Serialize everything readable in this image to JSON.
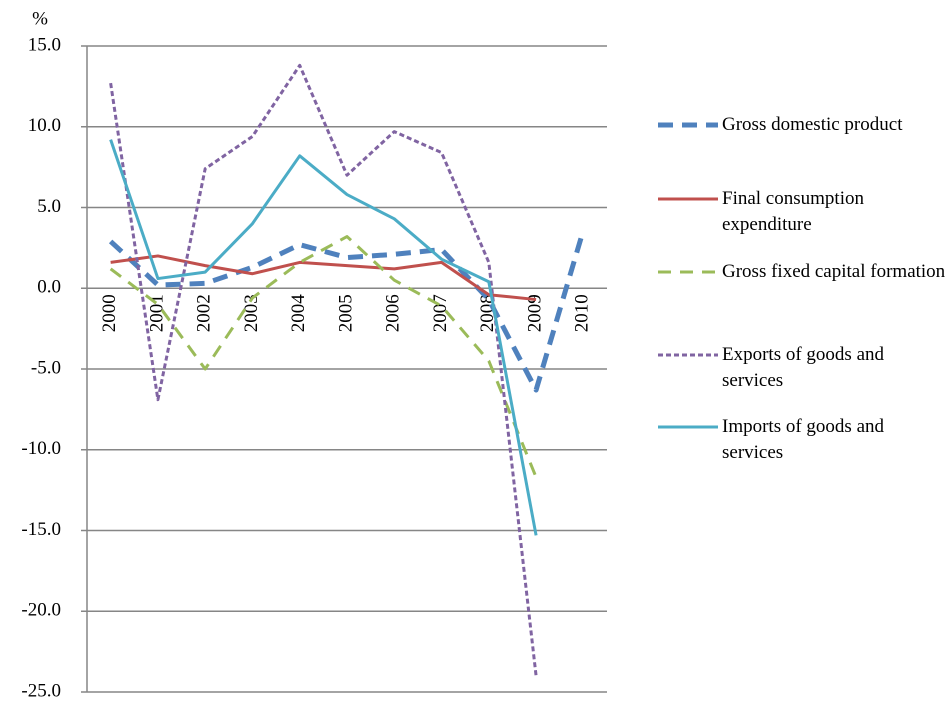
{
  "chart_data": {
    "type": "line",
    "y_label": "%",
    "categories": [
      "2000",
      "2001",
      "2002",
      "2003",
      "2004",
      "2005",
      "2006",
      "2007",
      "2008",
      "2009",
      "2010"
    ],
    "series": [
      {
        "name": "Gross domestic product",
        "color": "#4f81bd",
        "values": [
          2.9,
          0.2,
          0.3,
          1.3,
          2.7,
          1.9,
          2.1,
          2.4,
          -0.7,
          -6.3,
          3.6
        ]
      },
      {
        "name": "Final consumption expenditure",
        "color": "#c0504d",
        "values": [
          1.6,
          2.0,
          1.4,
          0.9,
          1.6,
          1.4,
          1.2,
          1.6,
          -0.4,
          -0.7,
          null
        ]
      },
      {
        "name": "Gross fixed capital formation",
        "color": "#9bbb59",
        "values": [
          1.2,
          -1.0,
          -5.0,
          -0.6,
          1.6,
          3.2,
          0.5,
          -1.1,
          -4.5,
          -11.7,
          null
        ]
      },
      {
        "name": "Exports of goods and services",
        "color": "#8064a2",
        "values": [
          12.7,
          -6.9,
          7.4,
          9.4,
          13.8,
          7.0,
          9.7,
          8.4,
          1.6,
          -24.0,
          null
        ]
      },
      {
        "name": "Imports of goods and services",
        "color": "#4bacc6",
        "values": [
          9.2,
          0.6,
          1.0,
          4.0,
          8.2,
          5.8,
          4.3,
          1.8,
          0.4,
          -15.3,
          null
        ]
      }
    ],
    "ylim": [
      -25,
      15
    ],
    "yticks": [
      {
        "value": -25,
        "label": "-25.0"
      },
      {
        "value": -20,
        "label": "-20.0"
      },
      {
        "value": -15,
        "label": "-15.0"
      },
      {
        "value": -10,
        "label": "-10.0"
      },
      {
        "value": -5,
        "label": "-5.0"
      },
      {
        "value": 0,
        "label": "0.0"
      },
      {
        "value": 5,
        "label": "5.0"
      },
      {
        "value": 10,
        "label": "10.0"
      },
      {
        "value": 15,
        "label": "15.0"
      }
    ],
    "grid": true
  }
}
